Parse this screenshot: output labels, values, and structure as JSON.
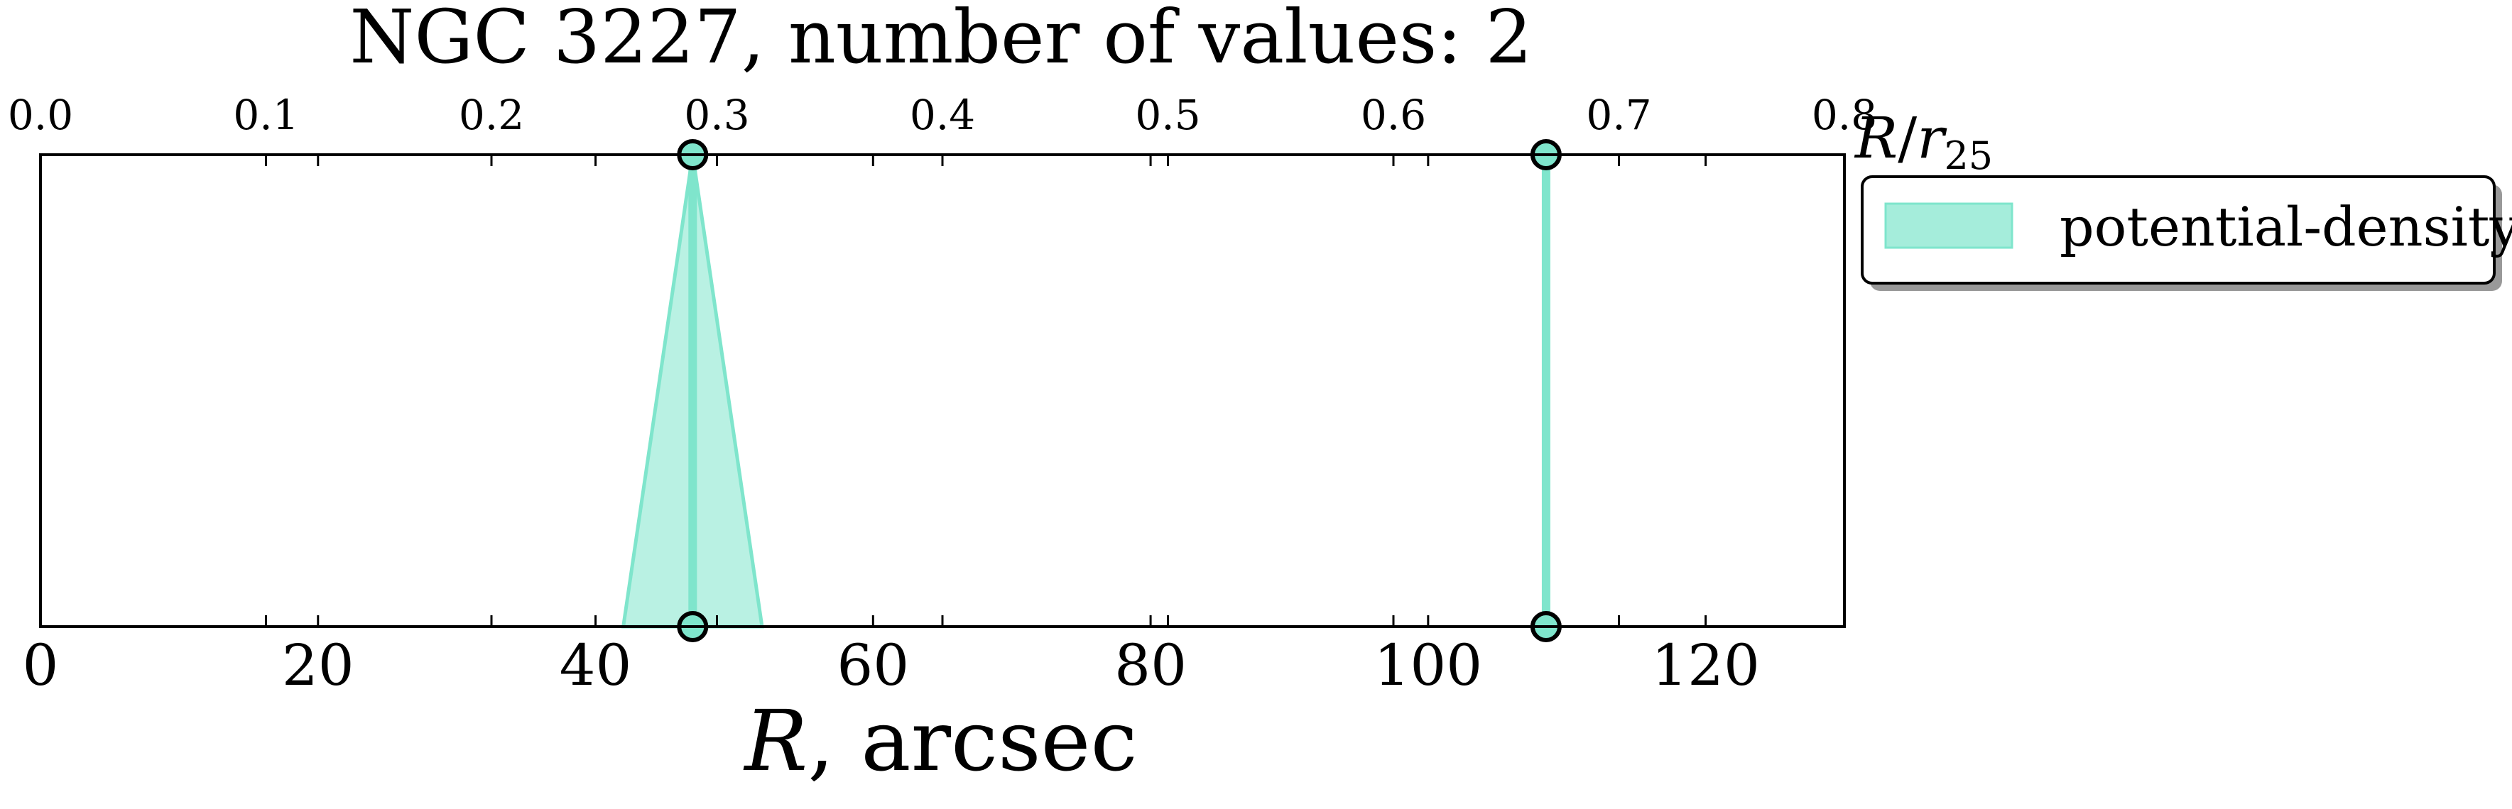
{
  "chart_data": {
    "type": "scatter",
    "title": "NGC 3227, number of values: 2",
    "xlabel": "R, arcsec",
    "xlabel_top": "R/r25",
    "xlim": [
      0,
      130
    ],
    "xlim_top": [
      0.0,
      0.8
    ],
    "xticks": [
      0,
      20,
      40,
      60,
      80,
      100,
      120
    ],
    "xticks_top": [
      0.0,
      0.1,
      0.2,
      0.3,
      0.4,
      0.5,
      0.6,
      0.7,
      0.8
    ],
    "xticklabels": [
      "0",
      "20",
      "40",
      "60",
      "80",
      "100",
      "120"
    ],
    "xticklabels_top": [
      "0.0",
      "0.1",
      "0.2",
      "0.3",
      "0.4",
      "0.5",
      "0.6",
      "0.7",
      "0.8"
    ],
    "legend_position": "outside-right-top",
    "grid": false,
    "series": [
      {
        "name": "potential-density",
        "color": "#7fe5cc",
        "points": [
          {
            "x": 47,
            "x_err": 5
          },
          {
            "x": 108.5,
            "x_err": 0
          }
        ]
      }
    ]
  }
}
